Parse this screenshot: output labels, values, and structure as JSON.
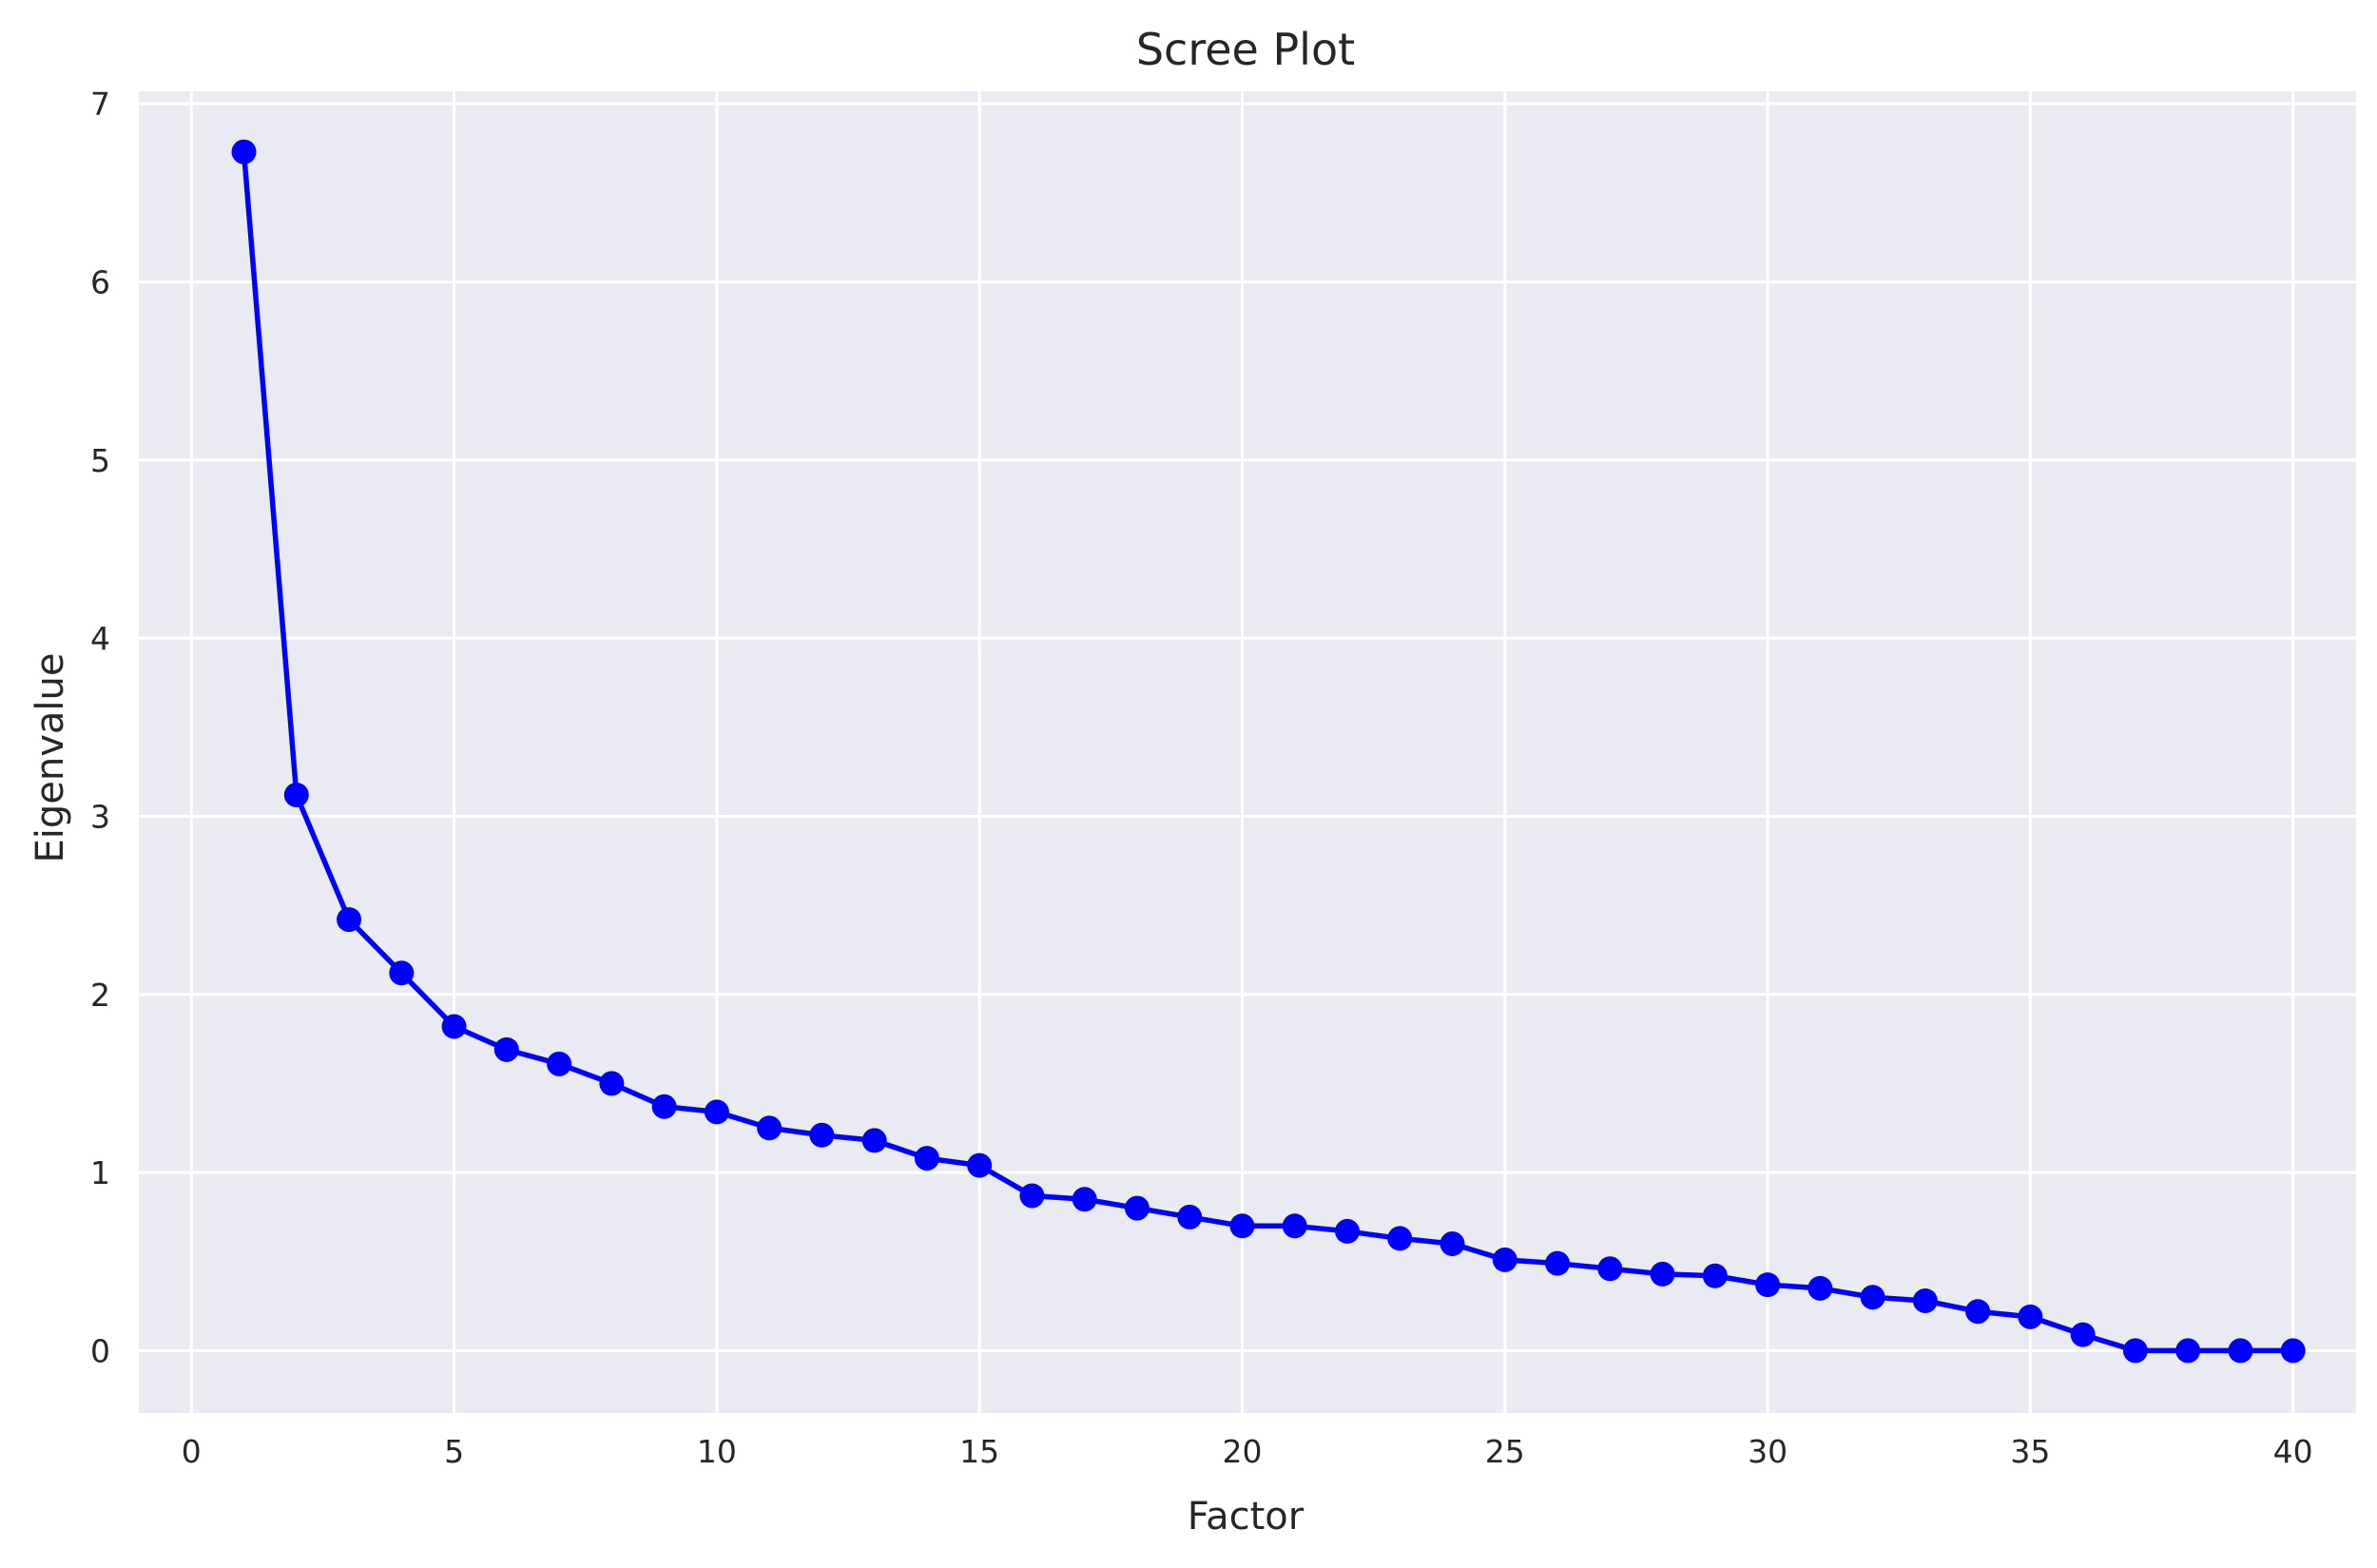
{
  "chart_data": {
    "type": "line",
    "title": "Scree Plot",
    "xlabel": "Factor",
    "ylabel": "Eigenvalue",
    "xlim": [
      -1,
      41.2
    ],
    "ylim": [
      -0.35,
      7.07
    ],
    "xticks": [
      0,
      5,
      10,
      15,
      20,
      25,
      30,
      35,
      40
    ],
    "yticks": [
      0,
      1,
      2,
      3,
      4,
      5,
      6,
      7
    ],
    "grid": true,
    "legend": "none",
    "series": [
      {
        "marker": "circle",
        "color": "#0000ff",
        "x": [
          1,
          2,
          3,
          4,
          5,
          6,
          7,
          8,
          9,
          10,
          11,
          12,
          13,
          14,
          15,
          16,
          17,
          18,
          19,
          20,
          21,
          22,
          23,
          24,
          25,
          26,
          27,
          28,
          29,
          30,
          31,
          32,
          33,
          34,
          35,
          36,
          37,
          38,
          39,
          40
        ],
        "y": [
          6.73,
          3.12,
          2.42,
          2.12,
          1.82,
          1.69,
          1.61,
          1.5,
          1.37,
          1.34,
          1.25,
          1.21,
          1.18,
          1.08,
          1.04,
          0.87,
          0.85,
          0.8,
          0.75,
          0.7,
          0.7,
          0.67,
          0.63,
          0.6,
          0.51,
          0.49,
          0.46,
          0.43,
          0.42,
          0.37,
          0.35,
          0.3,
          0.28,
          0.22,
          0.19,
          0.09,
          0.0,
          0.0,
          0.0,
          0.0
        ]
      }
    ]
  },
  "style": {
    "plot_background": "#eaeaf2",
    "grid_color": "#ffffff",
    "text_color": "#262626"
  }
}
